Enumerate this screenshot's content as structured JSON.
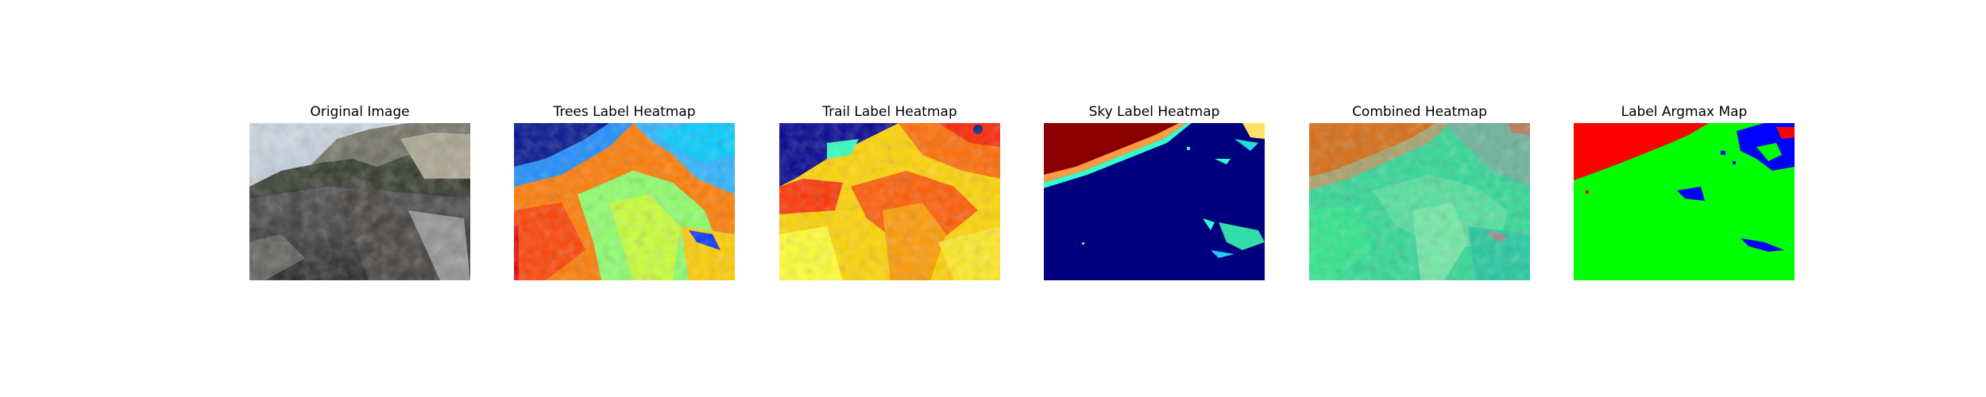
{
  "panels": [
    {
      "id": "original",
      "title": "Original Image"
    },
    {
      "id": "trees",
      "title": "Trees Label Heatmap"
    },
    {
      "id": "trail",
      "title": "Trail Label Heatmap"
    },
    {
      "id": "sky",
      "title": "Sky Label Heatmap"
    },
    {
      "id": "combined",
      "title": "Combined Heatmap"
    },
    {
      "id": "argmax",
      "title": "Label Argmax Map"
    }
  ],
  "colors": {
    "background": "#ffffff",
    "jet_low": "#00007f",
    "jet_high": "#7f0000",
    "argmax_sky": "#ff0000",
    "argmax_trail": "#00ff00",
    "argmax_trees": "#0000ff",
    "combined_sky": "#d66a10",
    "combined_trail": "#33e39a"
  }
}
